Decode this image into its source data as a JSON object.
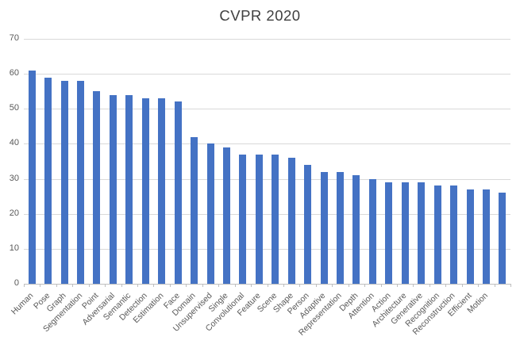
{
  "chart_data": {
    "type": "bar",
    "title": "CVPR 2020",
    "categories": [
      "Human",
      "Pose",
      "Graph",
      "Segmentation",
      "Point",
      "Adversarial",
      "Semantic",
      "Detection",
      "Estimation",
      "Face",
      "Domain",
      "Unsupervised",
      "Single",
      "Convolutional",
      "Feature",
      "Scene",
      "Shape",
      "Person",
      "Adaptive",
      "Representation",
      "Depth",
      "Attention",
      "Action",
      "Architecture",
      "Generative",
      "Recognition",
      "Reconstruction",
      "Efficient",
      "Motion",
      ""
    ],
    "values": [
      61,
      59,
      58,
      58,
      55,
      54,
      54,
      53,
      53,
      52,
      42,
      40,
      39,
      37,
      37,
      37,
      36,
      34,
      32,
      32,
      31,
      30,
      29,
      29,
      29,
      28,
      28,
      27,
      27,
      26
    ],
    "xlabel": "",
    "ylabel": "",
    "ylim": [
      0,
      70
    ],
    "yticks": [
      0,
      10,
      20,
      30,
      40,
      50,
      60,
      70
    ],
    "grid": "horizontal",
    "legend": "none",
    "colors": {
      "bar": "#4472c4",
      "gridline": "#d9d9d9",
      "axis": "#bfbfbf",
      "tick_labels": "#595959",
      "title": "#404040"
    }
  }
}
